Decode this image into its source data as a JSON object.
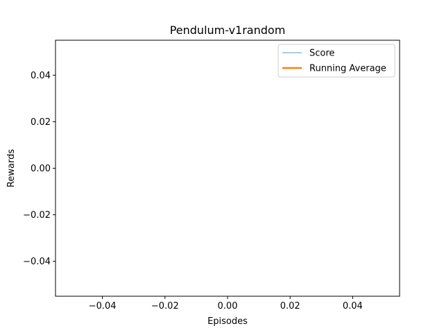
{
  "chart_data": {
    "type": "line",
    "title": "Pendulum-v1random",
    "xlabel": "Episodes",
    "ylabel": "Rewards",
    "xlim": [
      -0.055,
      0.055
    ],
    "ylim": [
      -0.055,
      0.055
    ],
    "xticks": [
      -0.04,
      -0.02,
      0.0,
      0.02,
      0.04
    ],
    "yticks": [
      -0.04,
      -0.02,
      0.0,
      0.02,
      0.04
    ],
    "xtick_labels": [
      "−0.04",
      "−0.02",
      "0.00",
      "0.02",
      "0.04"
    ],
    "ytick_labels": [
      "−0.04",
      "−0.02",
      "0.00",
      "0.02",
      "0.04"
    ],
    "grid": false,
    "legend_position": "top-right",
    "series": [
      {
        "name": "Score",
        "color": "#1f77b4",
        "x": [],
        "y": []
      },
      {
        "name": "Running Average",
        "color": "#ff7f0e",
        "x": [],
        "y": []
      }
    ]
  }
}
